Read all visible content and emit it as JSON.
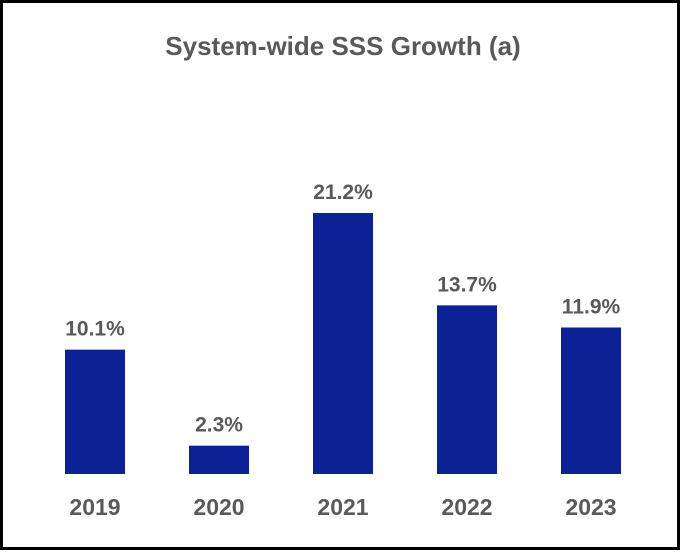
{
  "chart_data": {
    "type": "bar",
    "title": "System-wide SSS Growth (a)",
    "xlabel": "",
    "ylabel": "",
    "categories": [
      "2019",
      "2020",
      "2021",
      "2022",
      "2023"
    ],
    "values": [
      10.1,
      2.3,
      21.2,
      13.7,
      11.9
    ],
    "data_labels": [
      "10.1%",
      "2.3%",
      "21.2%",
      "13.7%",
      "11.9%"
    ],
    "ylim": [
      0,
      21.2
    ],
    "grid": false,
    "legend": "none",
    "bar_color": "#0B2194"
  }
}
